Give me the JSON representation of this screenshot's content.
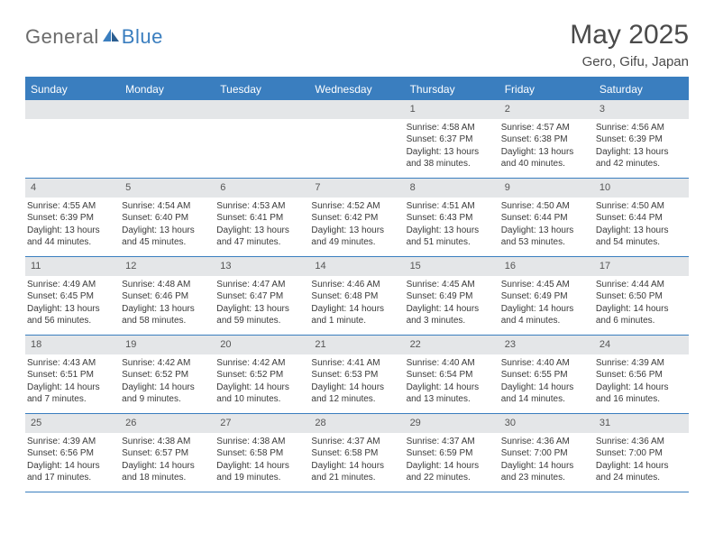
{
  "logo": {
    "part1": "General",
    "part2": "Blue"
  },
  "title": "May 2025",
  "location": "Gero, Gifu, Japan",
  "colors": {
    "brand": "#3a7ebf",
    "header_bg": "#3a7ebf",
    "header_text": "#ffffff",
    "daynum_bg": "#e4e6e8",
    "text": "#3a3a3a",
    "title_text": "#4a4a4a",
    "logo_gray": "#6b6b6b"
  },
  "weekdays": [
    "Sunday",
    "Monday",
    "Tuesday",
    "Wednesday",
    "Thursday",
    "Friday",
    "Saturday"
  ],
  "weeks": [
    [
      {
        "n": "",
        "sr": "",
        "ss": "",
        "dl1": "",
        "dl2": ""
      },
      {
        "n": "",
        "sr": "",
        "ss": "",
        "dl1": "",
        "dl2": ""
      },
      {
        "n": "",
        "sr": "",
        "ss": "",
        "dl1": "",
        "dl2": ""
      },
      {
        "n": "",
        "sr": "",
        "ss": "",
        "dl1": "",
        "dl2": ""
      },
      {
        "n": "1",
        "sr": "Sunrise: 4:58 AM",
        "ss": "Sunset: 6:37 PM",
        "dl1": "Daylight: 13 hours",
        "dl2": "and 38 minutes."
      },
      {
        "n": "2",
        "sr": "Sunrise: 4:57 AM",
        "ss": "Sunset: 6:38 PM",
        "dl1": "Daylight: 13 hours",
        "dl2": "and 40 minutes."
      },
      {
        "n": "3",
        "sr": "Sunrise: 4:56 AM",
        "ss": "Sunset: 6:39 PM",
        "dl1": "Daylight: 13 hours",
        "dl2": "and 42 minutes."
      }
    ],
    [
      {
        "n": "4",
        "sr": "Sunrise: 4:55 AM",
        "ss": "Sunset: 6:39 PM",
        "dl1": "Daylight: 13 hours",
        "dl2": "and 44 minutes."
      },
      {
        "n": "5",
        "sr": "Sunrise: 4:54 AM",
        "ss": "Sunset: 6:40 PM",
        "dl1": "Daylight: 13 hours",
        "dl2": "and 45 minutes."
      },
      {
        "n": "6",
        "sr": "Sunrise: 4:53 AM",
        "ss": "Sunset: 6:41 PM",
        "dl1": "Daylight: 13 hours",
        "dl2": "and 47 minutes."
      },
      {
        "n": "7",
        "sr": "Sunrise: 4:52 AM",
        "ss": "Sunset: 6:42 PM",
        "dl1": "Daylight: 13 hours",
        "dl2": "and 49 minutes."
      },
      {
        "n": "8",
        "sr": "Sunrise: 4:51 AM",
        "ss": "Sunset: 6:43 PM",
        "dl1": "Daylight: 13 hours",
        "dl2": "and 51 minutes."
      },
      {
        "n": "9",
        "sr": "Sunrise: 4:50 AM",
        "ss": "Sunset: 6:44 PM",
        "dl1": "Daylight: 13 hours",
        "dl2": "and 53 minutes."
      },
      {
        "n": "10",
        "sr": "Sunrise: 4:50 AM",
        "ss": "Sunset: 6:44 PM",
        "dl1": "Daylight: 13 hours",
        "dl2": "and 54 minutes."
      }
    ],
    [
      {
        "n": "11",
        "sr": "Sunrise: 4:49 AM",
        "ss": "Sunset: 6:45 PM",
        "dl1": "Daylight: 13 hours",
        "dl2": "and 56 minutes."
      },
      {
        "n": "12",
        "sr": "Sunrise: 4:48 AM",
        "ss": "Sunset: 6:46 PM",
        "dl1": "Daylight: 13 hours",
        "dl2": "and 58 minutes."
      },
      {
        "n": "13",
        "sr": "Sunrise: 4:47 AM",
        "ss": "Sunset: 6:47 PM",
        "dl1": "Daylight: 13 hours",
        "dl2": "and 59 minutes."
      },
      {
        "n": "14",
        "sr": "Sunrise: 4:46 AM",
        "ss": "Sunset: 6:48 PM",
        "dl1": "Daylight: 14 hours",
        "dl2": "and 1 minute."
      },
      {
        "n": "15",
        "sr": "Sunrise: 4:45 AM",
        "ss": "Sunset: 6:49 PM",
        "dl1": "Daylight: 14 hours",
        "dl2": "and 3 minutes."
      },
      {
        "n": "16",
        "sr": "Sunrise: 4:45 AM",
        "ss": "Sunset: 6:49 PM",
        "dl1": "Daylight: 14 hours",
        "dl2": "and 4 minutes."
      },
      {
        "n": "17",
        "sr": "Sunrise: 4:44 AM",
        "ss": "Sunset: 6:50 PM",
        "dl1": "Daylight: 14 hours",
        "dl2": "and 6 minutes."
      }
    ],
    [
      {
        "n": "18",
        "sr": "Sunrise: 4:43 AM",
        "ss": "Sunset: 6:51 PM",
        "dl1": "Daylight: 14 hours",
        "dl2": "and 7 minutes."
      },
      {
        "n": "19",
        "sr": "Sunrise: 4:42 AM",
        "ss": "Sunset: 6:52 PM",
        "dl1": "Daylight: 14 hours",
        "dl2": "and 9 minutes."
      },
      {
        "n": "20",
        "sr": "Sunrise: 4:42 AM",
        "ss": "Sunset: 6:52 PM",
        "dl1": "Daylight: 14 hours",
        "dl2": "and 10 minutes."
      },
      {
        "n": "21",
        "sr": "Sunrise: 4:41 AM",
        "ss": "Sunset: 6:53 PM",
        "dl1": "Daylight: 14 hours",
        "dl2": "and 12 minutes."
      },
      {
        "n": "22",
        "sr": "Sunrise: 4:40 AM",
        "ss": "Sunset: 6:54 PM",
        "dl1": "Daylight: 14 hours",
        "dl2": "and 13 minutes."
      },
      {
        "n": "23",
        "sr": "Sunrise: 4:40 AM",
        "ss": "Sunset: 6:55 PM",
        "dl1": "Daylight: 14 hours",
        "dl2": "and 14 minutes."
      },
      {
        "n": "24",
        "sr": "Sunrise: 4:39 AM",
        "ss": "Sunset: 6:56 PM",
        "dl1": "Daylight: 14 hours",
        "dl2": "and 16 minutes."
      }
    ],
    [
      {
        "n": "25",
        "sr": "Sunrise: 4:39 AM",
        "ss": "Sunset: 6:56 PM",
        "dl1": "Daylight: 14 hours",
        "dl2": "and 17 minutes."
      },
      {
        "n": "26",
        "sr": "Sunrise: 4:38 AM",
        "ss": "Sunset: 6:57 PM",
        "dl1": "Daylight: 14 hours",
        "dl2": "and 18 minutes."
      },
      {
        "n": "27",
        "sr": "Sunrise: 4:38 AM",
        "ss": "Sunset: 6:58 PM",
        "dl1": "Daylight: 14 hours",
        "dl2": "and 19 minutes."
      },
      {
        "n": "28",
        "sr": "Sunrise: 4:37 AM",
        "ss": "Sunset: 6:58 PM",
        "dl1": "Daylight: 14 hours",
        "dl2": "and 21 minutes."
      },
      {
        "n": "29",
        "sr": "Sunrise: 4:37 AM",
        "ss": "Sunset: 6:59 PM",
        "dl1": "Daylight: 14 hours",
        "dl2": "and 22 minutes."
      },
      {
        "n": "30",
        "sr": "Sunrise: 4:36 AM",
        "ss": "Sunset: 7:00 PM",
        "dl1": "Daylight: 14 hours",
        "dl2": "and 23 minutes."
      },
      {
        "n": "31",
        "sr": "Sunrise: 4:36 AM",
        "ss": "Sunset: 7:00 PM",
        "dl1": "Daylight: 14 hours",
        "dl2": "and 24 minutes."
      }
    ]
  ]
}
